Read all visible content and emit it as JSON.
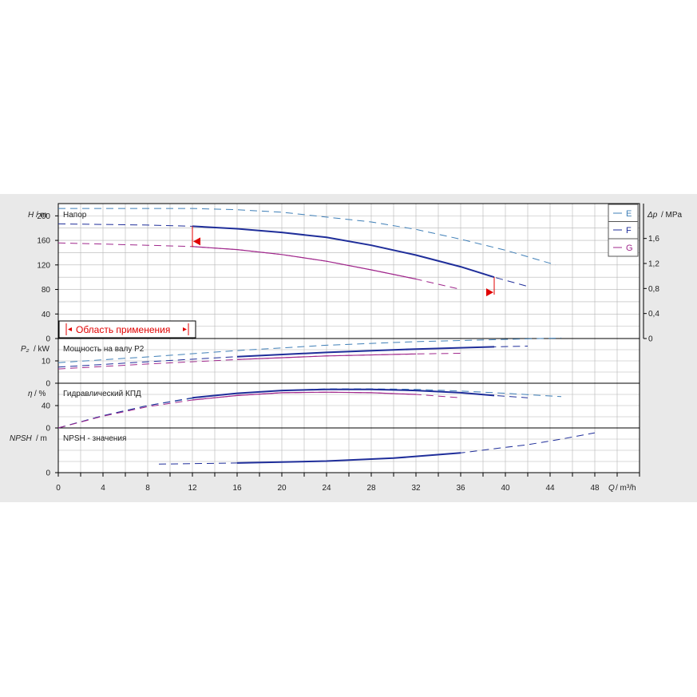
{
  "colors": {
    "E": "#3f7fb7",
    "F": "#1f2e9a",
    "G": "#a0288c",
    "limit": "#e00000",
    "grid": "#b5b5b5",
    "axis": "#000000"
  },
  "legend": [
    {
      "key": "E",
      "label": "E"
    },
    {
      "key": "F",
      "label": "F"
    },
    {
      "key": "G",
      "label": "G"
    }
  ],
  "operating_range": {
    "label": "Область применения",
    "q_min": 12,
    "q_max": 39
  },
  "chart_data": [
    {
      "type": "line",
      "title": "Напор",
      "ylabel": "H / m",
      "y2label": "Δp / MPa",
      "ylim": [
        0,
        220
      ],
      "yticks": [
        0,
        40,
        80,
        120,
        160,
        200
      ],
      "y2ticks": [
        "0",
        "0,4",
        "0,8",
        "1,2",
        "1,6"
      ],
      "y2values": [
        0,
        0.4,
        0.8,
        1.2,
        1.6
      ],
      "series": [
        {
          "name": "E",
          "q": [
            0,
            4,
            8,
            12,
            16,
            20,
            24,
            28,
            32,
            36,
            40,
            44.5
          ],
          "values": [
            212,
            212,
            212,
            212,
            210,
            206,
            198,
            190,
            178,
            162,
            144,
            120
          ]
        },
        {
          "name": "F",
          "q": [
            0,
            4,
            8,
            12,
            16,
            20,
            24,
            28,
            32,
            36,
            39,
            42
          ],
          "values": [
            187,
            186,
            185,
            183,
            179,
            173,
            165,
            152,
            136,
            117,
            100,
            85
          ]
        },
        {
          "name": "G",
          "q": [
            0,
            4,
            8,
            12,
            16,
            20,
            24,
            28,
            32,
            36
          ],
          "values": [
            156,
            154,
            152,
            150,
            145,
            137,
            126,
            112,
            97,
            80
          ]
        }
      ]
    },
    {
      "type": "line",
      "title": "Мощность на валу P2",
      "ylabel": "P₂ / kW",
      "ylim": [
        0,
        20
      ],
      "yticks": [
        0,
        10
      ],
      "series": [
        {
          "name": "E",
          "q": [
            0,
            8,
            16,
            24,
            32,
            40,
            45
          ],
          "values": [
            9.2,
            11.8,
            14.6,
            17.0,
            18.6,
            19.6,
            20.2
          ]
        },
        {
          "name": "F",
          "q": [
            0,
            8,
            16,
            24,
            32,
            39,
            42
          ],
          "values": [
            7.2,
            9.6,
            11.9,
            13.8,
            15.3,
            16.3,
            16.6
          ]
        },
        {
          "name": "G",
          "q": [
            0,
            8,
            16,
            24,
            32,
            36
          ],
          "values": [
            6.4,
            8.6,
            10.6,
            12.2,
            13.1,
            13.4
          ]
        }
      ]
    },
    {
      "type": "line",
      "title": "Гидравлический КПД",
      "ylabel": "η / %",
      "ylim": [
        0,
        80
      ],
      "yticks": [
        0,
        40
      ],
      "series": [
        {
          "name": "E",
          "q": [
            0,
            4,
            8,
            12,
            16,
            20,
            24,
            28,
            32,
            36,
            40,
            45
          ],
          "values": [
            0,
            22,
            40,
            53,
            62,
            67,
            70,
            70,
            69,
            66,
            62,
            56
          ]
        },
        {
          "name": "F",
          "q": [
            0,
            4,
            8,
            12,
            16,
            20,
            24,
            28,
            32,
            36,
            39,
            42
          ],
          "values": [
            0,
            22,
            40,
            54,
            62,
            67,
            69,
            69,
            67,
            63,
            58,
            54
          ]
        },
        {
          "name": "G",
          "q": [
            0,
            4,
            8,
            12,
            16,
            20,
            24,
            28,
            32,
            36
          ],
          "values": [
            0,
            21,
            38,
            50,
            58,
            63,
            64,
            63,
            60,
            54
          ]
        }
      ]
    },
    {
      "type": "line",
      "title": "NPSH - значения",
      "ylabel": "NPSH / m",
      "ylim": [
        0,
        12
      ],
      "yticks": [
        0
      ],
      "xlabel": "Q / m³/h",
      "xlim": [
        0,
        52
      ],
      "xticks": [
        0,
        4,
        8,
        12,
        16,
        20,
        24,
        28,
        32,
        36,
        40,
        44,
        48
      ],
      "series": [
        {
          "name": "F",
          "q": [
            9,
            16,
            24,
            30,
            36,
            40,
            42,
            45,
            48
          ],
          "values": [
            2.3,
            2.6,
            3.1,
            3.9,
            5.3,
            6.8,
            7.5,
            9.0,
            10.7
          ]
        }
      ]
    }
  ],
  "axis_titles": {
    "h_var": "H",
    "h_unit": "/ m",
    "p_var": "Δp",
    "p_unit": "/ MPa",
    "p2_var": "P₂",
    "p2_unit": "/ kW",
    "eta_var": "η",
    "eta_unit": "/ %",
    "npsh_var": "NPSH",
    "npsh_unit": "/ m",
    "q_var": "Q",
    "q_unit": "/ m³/h"
  }
}
